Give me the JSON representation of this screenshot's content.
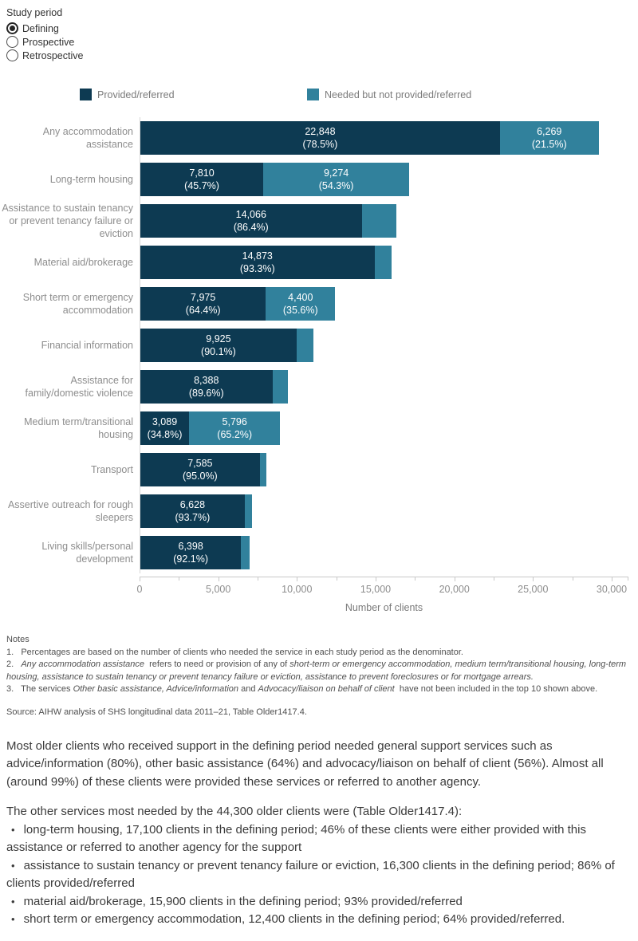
{
  "controls": {
    "title": "Study period",
    "options": [
      {
        "label": "Defining",
        "selected": true
      },
      {
        "label": "Prospective",
        "selected": false
      },
      {
        "label": "Retrospective",
        "selected": false
      }
    ]
  },
  "legend": [
    {
      "label": "Provided/referred",
      "color": "#0d3a52"
    },
    {
      "label": "Needed but not provided/referred",
      "color": "#31819c"
    }
  ],
  "chart_data": {
    "type": "bar",
    "orientation": "horizontal",
    "stacked": true,
    "title": "",
    "xlabel": "Number of clients",
    "ylabel": "",
    "xlim": [
      0,
      31000
    ],
    "x_tick_values": [
      0,
      5000,
      10000,
      15000,
      20000,
      25000,
      30000
    ],
    "series_names": [
      "Provided/referred",
      "Needed but not provided/referred"
    ],
    "rows": [
      {
        "category": "Any accommodation assistance",
        "provided": 22848,
        "provided_pct": "78.5%",
        "needed": 6269,
        "needed_pct": "21.5%",
        "needed_labeled": true
      },
      {
        "category": "Long-term housing",
        "provided": 7810,
        "provided_pct": "45.7%",
        "needed": 9274,
        "needed_pct": "54.3%",
        "needed_labeled": true
      },
      {
        "category": "Assistance to sustain tenancy or prevent tenancy failure or eviction",
        "provided": 14066,
        "provided_pct": "86.4%",
        "needed": 2214,
        "needed_pct": "13.6%",
        "needed_labeled": false
      },
      {
        "category": "Material aid/brokerage",
        "provided": 14873,
        "provided_pct": "93.3%",
        "needed": 1068,
        "needed_pct": "6.7%",
        "needed_labeled": false
      },
      {
        "category": "Short term or emergency accommodation",
        "provided": 7975,
        "provided_pct": "64.4%",
        "needed": 4400,
        "needed_pct": "35.6%",
        "needed_labeled": true
      },
      {
        "category": "Financial information",
        "provided": 9925,
        "provided_pct": "90.1%",
        "needed": 1091,
        "needed_pct": "9.9%",
        "needed_labeled": false
      },
      {
        "category": "Assistance for family/domestic violence",
        "provided": 8388,
        "provided_pct": "89.6%",
        "needed": 974,
        "needed_pct": "10.4%",
        "needed_labeled": false
      },
      {
        "category": "Medium term/transitional housing",
        "provided": 3089,
        "provided_pct": "34.8%",
        "needed": 5796,
        "needed_pct": "65.2%",
        "needed_labeled": true
      },
      {
        "category": "Transport",
        "provided": 7585,
        "provided_pct": "95.0%",
        "needed": 399,
        "needed_pct": "5.0%",
        "needed_labeled": false
      },
      {
        "category": "Assertive outreach for rough sleepers",
        "provided": 6628,
        "provided_pct": "93.7%",
        "needed": 446,
        "needed_pct": "6.3%",
        "needed_labeled": false
      },
      {
        "category": "Living skills/personal development",
        "provided": 6398,
        "provided_pct": "92.1%",
        "needed": 549,
        "needed_pct": "7.9%",
        "needed_labeled": false
      }
    ]
  },
  "axis": {
    "title": "Number of clients",
    "tick_labels": [
      "0",
      "5,000",
      "10,000",
      "15,000",
      "20,000",
      "25,000",
      "30,000"
    ]
  },
  "notes": {
    "heading": "Notes",
    "items": [
      {
        "segments": [
          {
            "text": "1.   Percentages are based on the number of clients who needed the service in each study period as the denominator.",
            "italic": false
          }
        ]
      },
      {
        "segments": [
          {
            "text": "2.   ",
            "italic": false
          },
          {
            "text": "Any accommodation assistance",
            "italic": true
          },
          {
            "text": "  refers to need or provision of any of ",
            "italic": false
          },
          {
            "text": "short-term or emergency accommodation, medium term/transitional housing, long-term housing, assistance to sustain tenancy or prevent tenancy failure or eviction, assistance to prevent foreclosures or for mortgage arrears.",
            "italic": true
          }
        ]
      },
      {
        "segments": [
          {
            "text": "3.   The services ",
            "italic": false
          },
          {
            "text": "Other basic assistance, Advice/information",
            "italic": true
          },
          {
            "text": " and ",
            "italic": false
          },
          {
            "text": "Advocacy/liaison on behalf of client",
            "italic": true
          },
          {
            "text": "  have not been included in the top 10 shown above.",
            "italic": false
          }
        ]
      }
    ]
  },
  "source": "Source: AIHW analysis of SHS longitudinal data 2011–21, Table Older1417.4.",
  "body": {
    "paragraph1": "Most older clients who received support in the defining period needed general support services such as advice/information (80%), other basic assistance (64%) and advocacy/liaison on behalf of client (56%). Almost all (around 99%) of these clients were provided these services or referred to another agency.",
    "paragraph2_intro": "The other services most needed by the 44,300 older clients were (Table Older1417.4):",
    "bullets": [
      "long-term housing, 17,100 clients in the defining period; 46% of these clients were either provided with this assistance or referred to another agency for the support",
      "assistance to sustain tenancy or prevent tenancy failure or eviction, 16,300 clients in the defining period; 86% of clients provided/referred",
      "material aid/brokerage, 15,900 clients in the defining period; 93% provided/referred",
      "short term or emergency accommodation, 12,400 clients in the defining period; 64% provided/referred."
    ]
  }
}
